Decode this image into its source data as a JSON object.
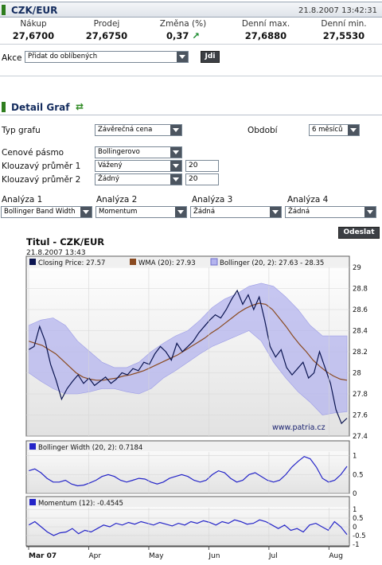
{
  "header": {
    "title": "CZK/EUR",
    "datetime": "21.8.2007 13:42:31"
  },
  "quotes": [
    {
      "label": "Nákup",
      "value": "27,6700"
    },
    {
      "label": "Prodej",
      "value": "27,6750"
    },
    {
      "label": "Změna (%)",
      "value": "0,37",
      "trend_icon": "arrow-up-right-icon"
    },
    {
      "label": "Denní max.",
      "value": "27,6880"
    },
    {
      "label": "Denní min.",
      "value": "27,5530"
    }
  ],
  "akce": {
    "label": "Akce",
    "selected": "Přidat do oblíbených",
    "go_button": "Jdi"
  },
  "detail": {
    "title": "Detail Graf",
    "icon": "chart-refresh-icon"
  },
  "form": {
    "typ_grafu_label": "Typ grafu",
    "typ_grafu_value": "Závěrečná cena",
    "obdobi_label": "Období",
    "obdobi_value": "6 měsíců",
    "cenove_pasmo_label": "Cenové pásmo",
    "cenove_pasmo_value": "Bollingerovo",
    "ma1_label": "Klouzavý průměr 1",
    "ma1_type": "Vážený",
    "ma1_period": "20",
    "ma2_label": "Klouzavý průměr 2",
    "ma2_type": "Žádný",
    "ma2_period": "20",
    "analyses": [
      {
        "label": "Analýza 1",
        "value": "Bollinger Band Width"
      },
      {
        "label": "Analýza 2",
        "value": "Momentum"
      },
      {
        "label": "Analýza 3",
        "value": "Žádná"
      },
      {
        "label": "Analýza 4",
        "value": "Žádná"
      }
    ],
    "submit_button": "Odeslat"
  },
  "colors": {
    "band_fill": "#b4b4ee",
    "band_edge": "#9c9ce6",
    "price_line": "#0a1450",
    "wma_line": "#8a4a20",
    "indicator_line": "#2424c8",
    "panel_bg_top": "#ffffff",
    "panel_bg_bottom": "#e2e2e2"
  },
  "chart_data": [
    {
      "type": "line",
      "title": "Titul - CZK/EUR",
      "subtitle": "21.8.2007 13:43",
      "watermark": "www.patria.cz",
      "legend": [
        {
          "name": "Closing Price: 27.57"
        },
        {
          "name": "WMA (20): 27.93"
        },
        {
          "name": "Bollinger (20, 2): 27.63 - 28.35"
        }
      ],
      "x_tick_labels": [
        "Mar 07",
        "Apr",
        "May",
        "Jun",
        "Jul",
        "Aug"
      ],
      "y_tick_labels": [
        "29",
        "28.8",
        "28.6",
        "28.4",
        "28.2",
        "28",
        "27.8",
        "27.6",
        "27.4"
      ],
      "ylim": [
        27.4,
        29.0
      ],
      "grid": true,
      "series": [
        {
          "name": "Closing Price",
          "values": [
            28.22,
            28.25,
            28.44,
            28.3,
            28.08,
            27.93,
            27.75,
            27.85,
            27.92,
            27.98,
            27.9,
            27.95,
            27.88,
            27.92,
            27.96,
            27.9,
            27.94,
            28.0,
            27.98,
            28.04,
            28.02,
            28.1,
            28.08,
            28.18,
            28.25,
            28.2,
            28.12,
            28.28,
            28.2,
            28.25,
            28.3,
            28.38,
            28.44,
            28.5,
            28.55,
            28.52,
            28.6,
            28.7,
            28.78,
            28.65,
            28.74,
            28.6,
            28.72,
            28.5,
            28.25,
            28.15,
            28.22,
            28.05,
            27.98,
            28.04,
            28.1,
            27.95,
            28.0,
            28.2,
            28.05,
            27.9,
            27.65,
            27.52,
            27.57
          ]
        },
        {
          "name": "WMA (20)",
          "values": [
            28.3,
            28.28,
            28.26,
            28.22,
            28.18,
            28.12,
            28.06,
            28.0,
            27.96,
            27.94,
            27.93,
            27.93,
            27.94,
            27.95,
            27.97,
            27.98,
            28.0,
            28.02,
            28.05,
            28.08,
            28.11,
            28.14,
            28.17,
            28.21,
            28.25,
            28.29,
            28.33,
            28.38,
            28.42,
            28.47,
            28.52,
            28.57,
            28.61,
            28.64,
            28.66,
            28.65,
            28.6,
            28.52,
            28.44,
            28.35,
            28.27,
            28.2,
            28.12,
            28.06,
            28.01,
            27.97,
            27.94,
            27.93
          ]
        },
        {
          "name": "Bollinger upper",
          "values": [
            28.45,
            28.5,
            28.52,
            28.45,
            28.3,
            28.2,
            28.1,
            28.05,
            28.05,
            28.1,
            28.2,
            28.28,
            28.35,
            28.4,
            28.5,
            28.62,
            28.7,
            28.75,
            28.82,
            28.85,
            28.82,
            28.72,
            28.6,
            28.45,
            28.35,
            28.35,
            28.35
          ]
        },
        {
          "name": "Bollinger lower",
          "values": [
            28.0,
            27.92,
            27.85,
            27.8,
            27.8,
            27.82,
            27.85,
            27.85,
            27.82,
            27.8,
            27.85,
            27.95,
            28.02,
            28.1,
            28.18,
            28.25,
            28.3,
            28.35,
            28.4,
            28.3,
            28.1,
            27.95,
            27.82,
            27.72,
            27.6,
            27.62,
            27.63
          ]
        }
      ]
    },
    {
      "type": "line",
      "legend": [
        {
          "name": "Bollinger Width (20, 2): 0.7184"
        }
      ],
      "y_tick_labels": [
        "1",
        "0.5",
        "0"
      ],
      "ylim": [
        0,
        1.1
      ],
      "series": [
        {
          "name": "Bollinger Width (20, 2)",
          "values": [
            0.6,
            0.65,
            0.55,
            0.4,
            0.3,
            0.3,
            0.35,
            0.25,
            0.2,
            0.22,
            0.28,
            0.35,
            0.45,
            0.5,
            0.45,
            0.35,
            0.3,
            0.35,
            0.4,
            0.38,
            0.3,
            0.25,
            0.3,
            0.4,
            0.45,
            0.5,
            0.45,
            0.35,
            0.3,
            0.35,
            0.5,
            0.6,
            0.55,
            0.4,
            0.3,
            0.35,
            0.5,
            0.55,
            0.45,
            0.35,
            0.3,
            0.35,
            0.5,
            0.7,
            0.85,
            0.98,
            0.92,
            0.7,
            0.4,
            0.3,
            0.35,
            0.5,
            0.72
          ]
        }
      ]
    },
    {
      "type": "line",
      "legend": [
        {
          "name": "Momentum (12): -0.4545"
        }
      ],
      "y_tick_labels": [
        "1",
        "0.5",
        "0",
        "-0.5",
        "-1"
      ],
      "ylim": [
        -1.1,
        1.1
      ],
      "series": [
        {
          "name": "Momentum (12)",
          "values": [
            0.1,
            0.3,
            0.0,
            -0.3,
            -0.5,
            -0.35,
            -0.3,
            -0.1,
            -0.4,
            -0.2,
            -0.3,
            -0.1,
            0.1,
            0.0,
            0.2,
            0.1,
            0.25,
            0.15,
            0.3,
            0.2,
            0.1,
            0.25,
            0.15,
            0.05,
            0.2,
            0.1,
            0.3,
            0.2,
            0.35,
            0.25,
            0.1,
            0.3,
            0.2,
            0.4,
            0.3,
            0.15,
            0.2,
            0.4,
            0.3,
            0.1,
            -0.1,
            0.1,
            -0.2,
            -0.1,
            -0.3,
            0.1,
            0.2,
            0.0,
            -0.2,
            0.3,
            0.0,
            -0.45
          ]
        }
      ]
    }
  ]
}
